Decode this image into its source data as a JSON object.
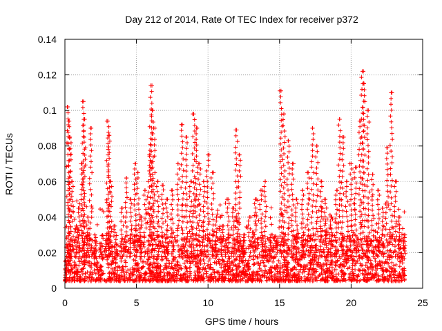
{
  "chart_data": {
    "type": "scatter",
    "title": "Day 212 of 2014, Rate Of TEC Index for receiver p372",
    "xlabel": "GPS time / hours",
    "ylabel": "ROTI / TECUs",
    "xlim": [
      0,
      25
    ],
    "ylim": [
      0,
      0.14
    ],
    "xticks": [
      0,
      5,
      10,
      15,
      20,
      25
    ],
    "xtick_labels": [
      "0",
      "5",
      "10",
      "15",
      "20",
      "25"
    ],
    "yticks": [
      0,
      0.02,
      0.04,
      0.06,
      0.08,
      0.1,
      0.12,
      0.14
    ],
    "ytick_labels": [
      "0",
      "0.02",
      "0.04",
      "0.06",
      "0.08",
      "0.1",
      "0.12",
      "0.14"
    ],
    "grid": true,
    "marker": "plus",
    "color": "#ff0000",
    "series": [
      {
        "name": "ROTI",
        "x": [
          0.05,
          0.2,
          0.3,
          0.35,
          0.5,
          0.8,
          1.0,
          1.2,
          1.3,
          1.35,
          1.6,
          1.8,
          2.1,
          2.5,
          3.0,
          3.1,
          3.2,
          3.5,
          4.0,
          4.3,
          4.6,
          4.9,
          5.1,
          5.3,
          5.6,
          5.9,
          6.0,
          6.1,
          6.2,
          6.5,
          6.8,
          7.1,
          7.5,
          7.9,
          8.2,
          8.5,
          8.8,
          9.0,
          9.2,
          9.4,
          9.7,
          10.0,
          10.3,
          10.6,
          11.0,
          11.4,
          11.8,
          12.0,
          12.2,
          12.5,
          12.9,
          13.3,
          13.7,
          14.0,
          14.4,
          14.8,
          15.1,
          15.3,
          15.6,
          15.9,
          16.2,
          16.6,
          17.0,
          17.3,
          17.6,
          17.9,
          18.2,
          18.6,
          19.0,
          19.2,
          19.4,
          19.7,
          20.0,
          20.3,
          20.6,
          20.8,
          20.9,
          21.2,
          21.5,
          21.9,
          22.2,
          22.5,
          22.8,
          23.1,
          23.4,
          23.7
        ],
        "y": [
          0.009,
          0.102,
          0.094,
          0.085,
          0.06,
          0.035,
          0.045,
          0.07,
          0.105,
          0.095,
          0.04,
          0.09,
          0.03,
          0.025,
          0.094,
          0.086,
          0.06,
          0.035,
          0.045,
          0.062,
          0.05,
          0.07,
          0.065,
          0.04,
          0.055,
          0.075,
          0.114,
          0.1,
          0.09,
          0.06,
          0.058,
          0.05,
          0.055,
          0.07,
          0.092,
          0.085,
          0.06,
          0.098,
          0.09,
          0.07,
          0.06,
          0.075,
          0.065,
          0.04,
          0.035,
          0.05,
          0.045,
          0.089,
          0.075,
          0.03,
          0.04,
          0.05,
          0.055,
          0.06,
          0.03,
          0.025,
          0.111,
          0.098,
          0.083,
          0.07,
          0.05,
          0.055,
          0.065,
          0.09,
          0.08,
          0.06,
          0.05,
          0.04,
          0.055,
          0.095,
          0.085,
          0.06,
          0.07,
          0.068,
          0.094,
          0.122,
          0.115,
          0.1,
          0.064,
          0.055,
          0.045,
          0.079,
          0.11,
          0.06,
          0.04,
          0.03
        ],
        "baseline_min": 0.004,
        "baseline_max": 0.03,
        "x_range": [
          0,
          23.75
        ]
      }
    ]
  }
}
